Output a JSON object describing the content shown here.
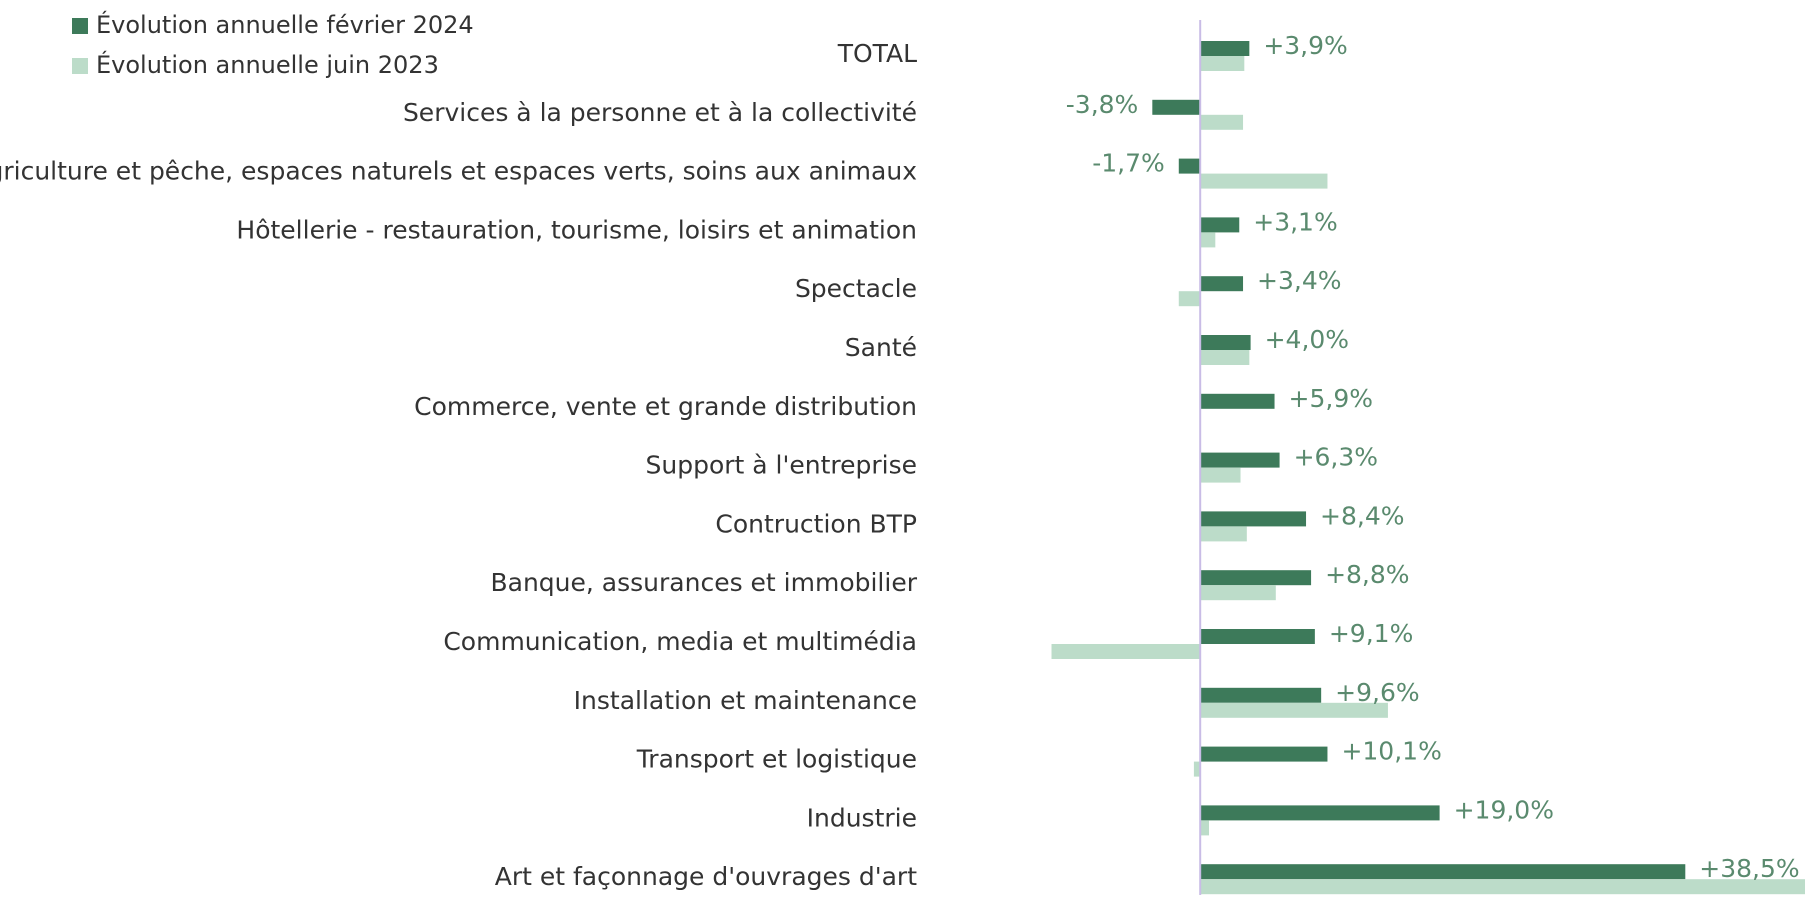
{
  "chart_data": {
    "type": "hbar",
    "categories": [
      "TOTAL",
      "Services à la personne et à la collectivité",
      "Agriculture et pêche, espaces naturels et espaces verts, soins aux animaux",
      "Hôtellerie - restauration, tourisme, loisirs et animation",
      "Spectacle",
      "Santé",
      "Commerce, vente et grande distribution",
      "Support à l'entreprise",
      "Contruction BTP",
      "Banque, assurances et immobilier",
      "Communication, media et multimédia",
      "Installation et maintenance",
      "Transport et logistique",
      "Industrie",
      "Art  et façonnage d'ouvrages d'art"
    ],
    "series": [
      {
        "name": "Évolution annuelle février 2024",
        "color": "#3d7a5a",
        "values": [
          3.9,
          -3.8,
          -1.7,
          3.1,
          3.4,
          4.0,
          5.9,
          6.3,
          8.4,
          8.8,
          9.1,
          9.6,
          10.1,
          19.0,
          38.5
        ],
        "value_labels": [
          "+3,9%",
          "-3,8%",
          "-1,7%",
          "+3,1%",
          "+3,4%",
          "+4,0%",
          "+5,9%",
          "+6,3%",
          "+8,4%",
          "+8,8%",
          "+9,1%",
          "+9,6%",
          "+10,1%",
          "+19,0%",
          "+38,5%"
        ]
      },
      {
        "name": "Évolution annuelle juin 2023",
        "color": "#bcdcc9",
        "values": [
          3.5,
          3.4,
          10.1,
          1.2,
          -1.7,
          3.9,
          0,
          3.2,
          3.7,
          6.0,
          -11.8,
          14.9,
          -0.5,
          0.7,
          48
        ]
      }
    ],
    "xlim": [
      -12,
      48
    ],
    "legend": "top-left",
    "zero_line_color": "#c9bce6",
    "label_color": "#5a8a6e"
  }
}
